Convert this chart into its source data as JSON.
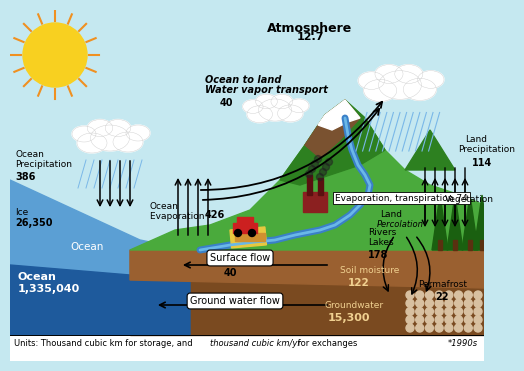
{
  "sky_color": "#c5e8f0",
  "ocean_color": "#5b9fd4",
  "ocean_deep_color": "#1e5a9c",
  "land_green": "#4aaa3c",
  "land_dark_green": "#2d8020",
  "mountain_brown": "#7a5230",
  "ground_brown": "#7a4a20",
  "soil_brown": "#9a6030",
  "river_blue": "#3a80c8",
  "sun_yellow": "#f8d020",
  "sun_orange": "#f09020",
  "atm_label": "Atmosphere",
  "atm_value": "12.7",
  "vapor_line1": "Ocean to land",
  "vapor_line2": "Water vapor transport",
  "vapor_value": "40",
  "ocean_precip_label": "Ocean\nPrecipitation",
  "ocean_precip_value": "386",
  "ocean_evap_label": "Ocean\nEvaporation ",
  "ocean_evap_bold": "426",
  "ice_label": "Ice",
  "ice_value": "26,350",
  "ocean_label": "Ocean",
  "ocean_storage_label": "Ocean",
  "ocean_storage_value": "1,335,040",
  "surface_flow_label": "Surface flow",
  "surface_flow_value": "40",
  "gw_flow_label": "Ground water flow",
  "soil_moisture_label": "Soil moisture",
  "soil_moisture_value": "122",
  "groundwater_label": "Groundwater",
  "groundwater_value": "15,300",
  "land_precip_label": "Land\nPrecipitation",
  "land_precip_value": "114",
  "evap_trans_label": "Evaporation, transpiration ",
  "evap_trans_value": "74",
  "rivers_label": "Rivers\nLakes",
  "rivers_value": "178",
  "land_perc_label": "Land\nPercolation",
  "veg_label": "Vegetation",
  "permafrost_label": "Permafrost",
  "permafrost_value": "22",
  "footer1": "Units: Thousand cubic km for storage, and ",
  "footer2": "thousand cubic km/yr",
  "footer3": " for exchanges",
  "footer4": "*1990s"
}
